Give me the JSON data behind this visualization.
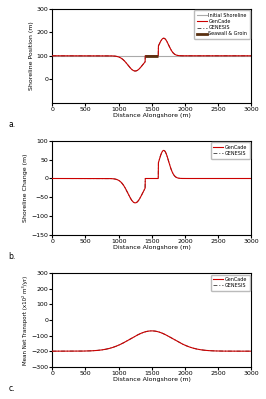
{
  "xlim": [
    0,
    3000
  ],
  "x_ticks": [
    0,
    500,
    1000,
    1500,
    2000,
    2500,
    3000
  ],
  "subplot_a": {
    "ylim": [
      -100,
      300
    ],
    "yticks": [
      0,
      100,
      200,
      300
    ],
    "ylabel": "Shoreline Position (m)",
    "label": "a.",
    "initial_y": 100
  },
  "subplot_b": {
    "ylim": [
      -150,
      100
    ],
    "yticks": [
      -150,
      -100,
      -50,
      0,
      50,
      100
    ],
    "ylabel": "Shoreline Change (m)",
    "label": "b."
  },
  "subplot_c": {
    "ylim": [
      -300,
      300
    ],
    "yticks": [
      -300,
      -200,
      -100,
      0,
      100,
      200,
      300
    ],
    "ylabel": "Mean Net Transport (x10² m³/yr)",
    "label": "c."
  },
  "xlabel": "Distance Alongshore (m)",
  "color_red": "#cc0000",
  "color_gray": "#aaaaaa",
  "color_dark": "#555555",
  "color_seawall": "#5a3010",
  "background": "#ffffff",
  "figsize": [
    2.66,
    3.99
  ],
  "dpi": 100
}
